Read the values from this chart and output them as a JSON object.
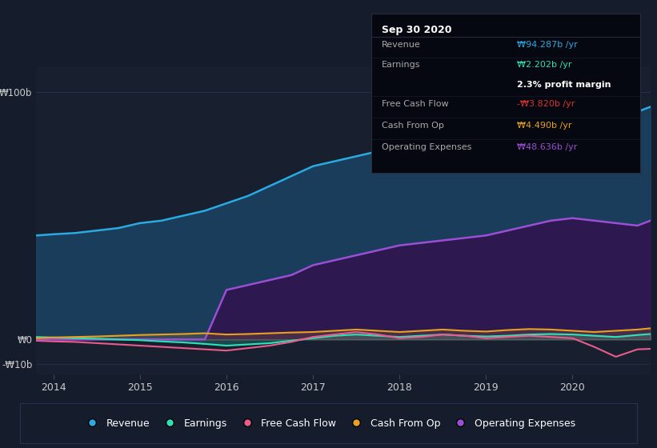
{
  "bg_color": "#151c2c",
  "plot_bg_color": "#182030",
  "text_color": "#cccccc",
  "grid_color": "#253050",
  "years": [
    2013.8,
    2014.0,
    2014.25,
    2014.5,
    2014.75,
    2015.0,
    2015.25,
    2015.5,
    2015.75,
    2016.0,
    2016.25,
    2016.5,
    2016.75,
    2017.0,
    2017.25,
    2017.5,
    2017.75,
    2018.0,
    2018.25,
    2018.5,
    2018.75,
    2019.0,
    2019.25,
    2019.5,
    2019.75,
    2020.0,
    2020.25,
    2020.5,
    2020.75,
    2020.9
  ],
  "revenue": [
    42,
    42.5,
    43,
    44,
    45,
    47,
    48,
    50,
    52,
    55,
    58,
    62,
    66,
    70,
    72,
    74,
    76,
    78,
    80,
    82,
    84,
    86,
    88,
    90,
    92,
    93,
    92,
    91,
    92,
    94
  ],
  "operating_expenses": [
    0,
    0,
    0,
    0,
    0,
    0,
    0,
    0,
    0,
    20,
    22,
    24,
    26,
    30,
    32,
    34,
    36,
    38,
    39,
    40,
    41,
    42,
    44,
    46,
    48,
    49,
    48,
    47,
    46,
    48
  ],
  "earnings": [
    1.0,
    0.8,
    0.5,
    0.3,
    0.0,
    -0.3,
    -0.8,
    -1.2,
    -1.8,
    -2.5,
    -2.0,
    -1.5,
    -0.5,
    0.5,
    1.5,
    2.0,
    1.5,
    1.0,
    1.5,
    2.0,
    1.5,
    1.2,
    1.5,
    2.0,
    2.2,
    2.0,
    1.5,
    1.0,
    1.8,
    2.2
  ],
  "free_cash_flow": [
    -0.5,
    -0.8,
    -1.0,
    -1.5,
    -2.0,
    -2.5,
    -3.0,
    -3.5,
    -4.0,
    -4.5,
    -3.5,
    -2.5,
    -1.0,
    1.0,
    2.0,
    3.0,
    2.0,
    0.5,
    1.0,
    2.0,
    1.5,
    0.5,
    1.0,
    1.5,
    1.0,
    0.5,
    -3.0,
    -7.0,
    -4.0,
    -3.8
  ],
  "cash_from_op": [
    0.5,
    0.8,
    1.0,
    1.2,
    1.5,
    1.8,
    2.0,
    2.2,
    2.5,
    2.0,
    2.2,
    2.5,
    2.8,
    3.0,
    3.5,
    4.0,
    3.5,
    3.0,
    3.5,
    4.0,
    3.5,
    3.2,
    3.8,
    4.2,
    4.0,
    3.5,
    3.0,
    3.5,
    4.0,
    4.5
  ],
  "revenue_color": "#29abe2",
  "earnings_color": "#2de0b8",
  "free_cash_flow_color": "#e85c8a",
  "cash_from_op_color": "#e8a020",
  "operating_expenses_color": "#9b4fd4",
  "revenue_fill": "#1b3d5c",
  "operating_expenses_fill": "#2d1850",
  "ylim": [
    -14,
    110
  ],
  "xticks": [
    2014,
    2015,
    2016,
    2017,
    2018,
    2019,
    2020
  ],
  "ylabel_100b": "₩100b",
  "ylabel_0": "₩0",
  "ylabel_neg10b": "-₩10b",
  "tooltip_title": "Sep 30 2020",
  "tooltip_revenue_label": "Revenue",
  "tooltip_revenue_value": "₩94.287b /yr",
  "tooltip_earnings_label": "Earnings",
  "tooltip_earnings_value": "₩2.202b /yr",
  "tooltip_profit_margin": "2.3% profit margin",
  "tooltip_fcf_label": "Free Cash Flow",
  "tooltip_fcf_value": "-₩3.820b /yr",
  "tooltip_cashop_label": "Cash From Op",
  "tooltip_cashop_value": "₩4.490b /yr",
  "tooltip_opex_label": "Operating Expenses",
  "tooltip_opex_value": "₩48.636b /yr",
  "legend_labels": [
    "Revenue",
    "Earnings",
    "Free Cash Flow",
    "Cash From Op",
    "Operating Expenses"
  ]
}
